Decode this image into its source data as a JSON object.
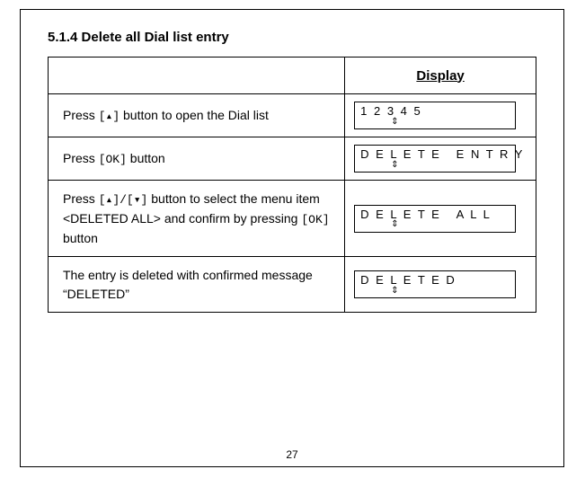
{
  "heading": "5.1.4  Delete all Dial list entry",
  "header_right": "Display",
  "page_number": "27",
  "ok_key": "[OK]",
  "up_key": "[▴]",
  "updown_key": "[▴]/[▾]",
  "arrows_icon": "⇕",
  "rows": [
    {
      "instr_pre": "Press ",
      "instr_mid": "",
      "instr_post": "  button to open the Dial list",
      "uses_up": true,
      "uses_ok": false,
      "uses_updown": false,
      "display_line1": "1 2 3 4 5"
    },
    {
      "instr_pre": "Press ",
      "instr_mid": "",
      "instr_post": " button",
      "uses_up": false,
      "uses_ok": true,
      "uses_updown": false,
      "display_line1": "D E L E T E   E N T R Y"
    },
    {
      "instr_pre": "Press ",
      "instr_mid": " button to select the menu item <DELETED ALL> and confirm by pressing ",
      "instr_post": " button",
      "uses_up": false,
      "uses_ok": true,
      "uses_updown": true,
      "display_line1": "D E L E T E   A L L"
    },
    {
      "instr_pre": "The entry is deleted  with confirmed message “DELETED”",
      "instr_mid": "",
      "instr_post": "",
      "uses_up": false,
      "uses_ok": false,
      "uses_updown": false,
      "display_line1": "D E L E T E D"
    }
  ]
}
